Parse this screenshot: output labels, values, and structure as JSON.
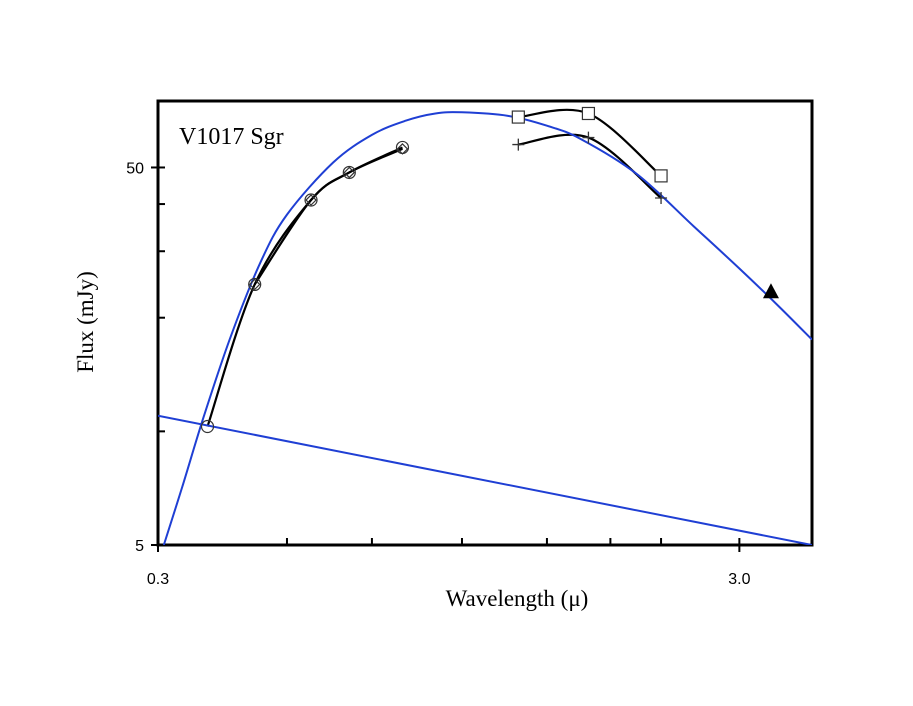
{
  "chart_data": {
    "type": "line",
    "title": "V1017 Sgr",
    "xlabel": "Wavelength (μ)",
    "ylabel": "Flux (mJy)",
    "xscale": "log",
    "yscale": "log",
    "xlim": [
      0.3,
      4.0
    ],
    "ylim": [
      5,
      75
    ],
    "x_ticks": [
      {
        "value": 0.3,
        "label": "0.3"
      },
      {
        "value": 3.0,
        "label": "3.0"
      }
    ],
    "y_ticks": [
      {
        "value": 5,
        "label": "5"
      },
      {
        "value": 50,
        "label": "50"
      }
    ],
    "x_minor_ticks": [
      0.5,
      0.7,
      1.0,
      1.4,
      1.8,
      2.2,
      3.0
    ],
    "y_minor_ticks": [
      10,
      20,
      30,
      40,
      50
    ],
    "grid": false,
    "series": [
      {
        "name": "observed-circles",
        "marker": "circle",
        "color": "#000000",
        "connected": true,
        "x": [
          0.365,
          0.44,
          0.55,
          0.64,
          0.79
        ],
        "y": [
          10.3,
          24.5,
          41,
          48.5,
          56.5
        ]
      },
      {
        "name": "observed-diamonds",
        "marker": "diamond",
        "color": "#000000",
        "connected": true,
        "x": [
          0.44,
          0.55,
          0.64,
          0.79
        ],
        "y": [
          24.5,
          41,
          48.5,
          56
        ]
      },
      {
        "name": "observed-squares",
        "marker": "square",
        "color": "#000000",
        "connected": true,
        "x": [
          1.25,
          1.65,
          2.2
        ],
        "y": [
          68,
          69.5,
          47.5
        ]
      },
      {
        "name": "observed-plus",
        "marker": "plus",
        "color": "#000000",
        "connected": true,
        "x": [
          1.25,
          1.65,
          2.2
        ],
        "y": [
          57.5,
          60,
          41.5
        ]
      },
      {
        "name": "observed-triangle",
        "marker": "triangle",
        "color": "#000000",
        "connected": false,
        "x": [
          3.4
        ],
        "y": [
          23.5
        ]
      },
      {
        "name": "blackbody-fit",
        "marker": "none",
        "color": "#1f3fd4",
        "connected": true,
        "x": [
          0.307,
          0.33,
          0.36,
          0.4,
          0.45,
          0.5,
          0.6,
          0.7,
          0.8,
          0.9,
          1.0,
          1.2,
          1.4,
          1.6,
          2.0,
          2.5,
          3.0,
          3.5,
          4.0
        ],
        "y": [
          5.0,
          7.1,
          11.0,
          17.8,
          28.0,
          37.5,
          51.5,
          61.0,
          66.5,
          69.5,
          70.0,
          68.5,
          64.5,
          59.5,
          48.0,
          35.0,
          27.0,
          21.5,
          17.5
        ]
      },
      {
        "name": "power-law",
        "marker": "none",
        "color": "#1f3fd4",
        "connected": true,
        "x": [
          0.3,
          4.0
        ],
        "y": [
          11.0,
          5.0
        ]
      }
    ]
  }
}
